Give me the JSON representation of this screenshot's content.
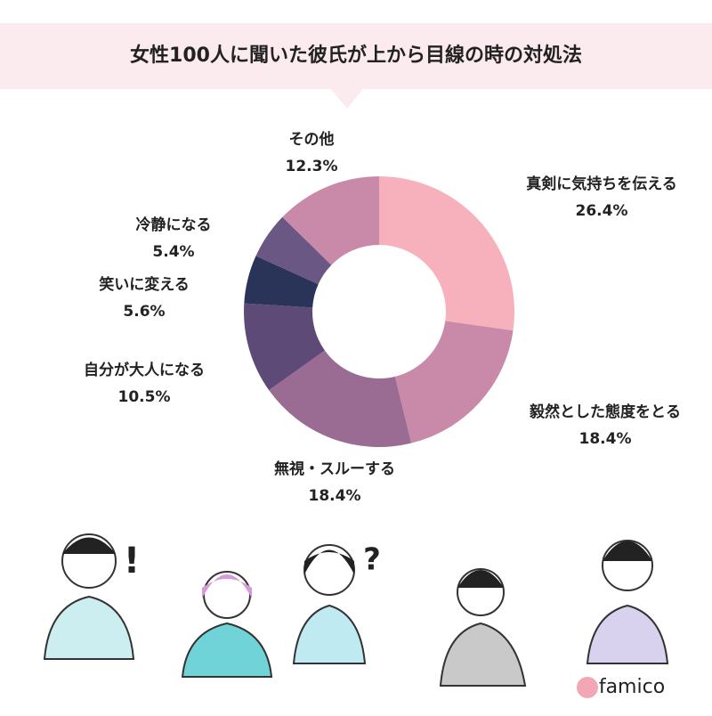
{
  "chart_data": {
    "type": "donut",
    "title": "女性100人に聞いた彼氏が上から目線の時の対処法",
    "categories": [
      "真剣に気持ちを伝える",
      "毅然とした態度をとる",
      "無視・スルーする",
      "自分が大人になる",
      "笑いに変える",
      "冷静になる",
      "その他"
    ],
    "values": [
      26.4,
      18.4,
      18.4,
      10.5,
      5.6,
      5.4,
      12.3
    ],
    "value_labels": [
      "26.4%",
      "18.4%",
      "18.4%",
      "10.5%",
      "5.6%",
      "5.4%",
      "12.3%"
    ],
    "colors": [
      "#f7b1bd",
      "#c98aa9",
      "#9a6b93",
      "#5d4a77",
      "#2a3459",
      "#6b5784",
      "#c98aa9"
    ]
  },
  "footer": {
    "brand": "famico"
  }
}
